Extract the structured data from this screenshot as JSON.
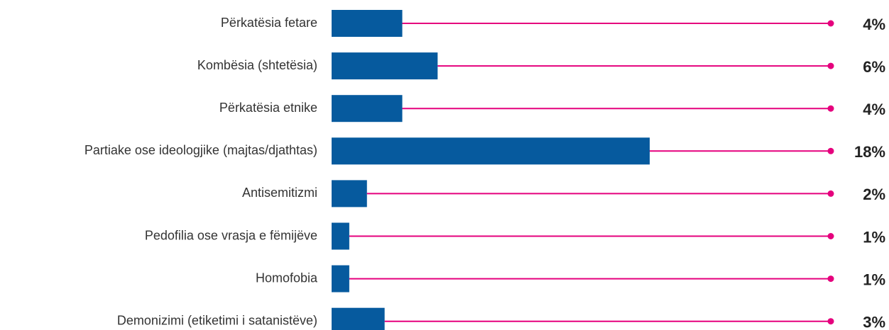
{
  "chart_data": {
    "type": "bar",
    "orientation": "horizontal",
    "categories": [
      "Përkatësia fetare",
      "Kombësia (shtetësia)",
      "Përkatësia etnike",
      "Partiake ose ideologjike (majtas/djathtas)",
      "Antisemitizmi",
      "Pedofilia ose vrasja e fëmijëve",
      "Homofobia",
      "Demonizimi (etiketimi i satanistëve)"
    ],
    "values": [
      4,
      6,
      4,
      18,
      2,
      1,
      1,
      3
    ],
    "value_labels": [
      "4%",
      "6%",
      "4%",
      "18%",
      "2%",
      "1%",
      "1%",
      "3%"
    ],
    "color": "#065a9e",
    "line_color": "#e5007d"
  }
}
